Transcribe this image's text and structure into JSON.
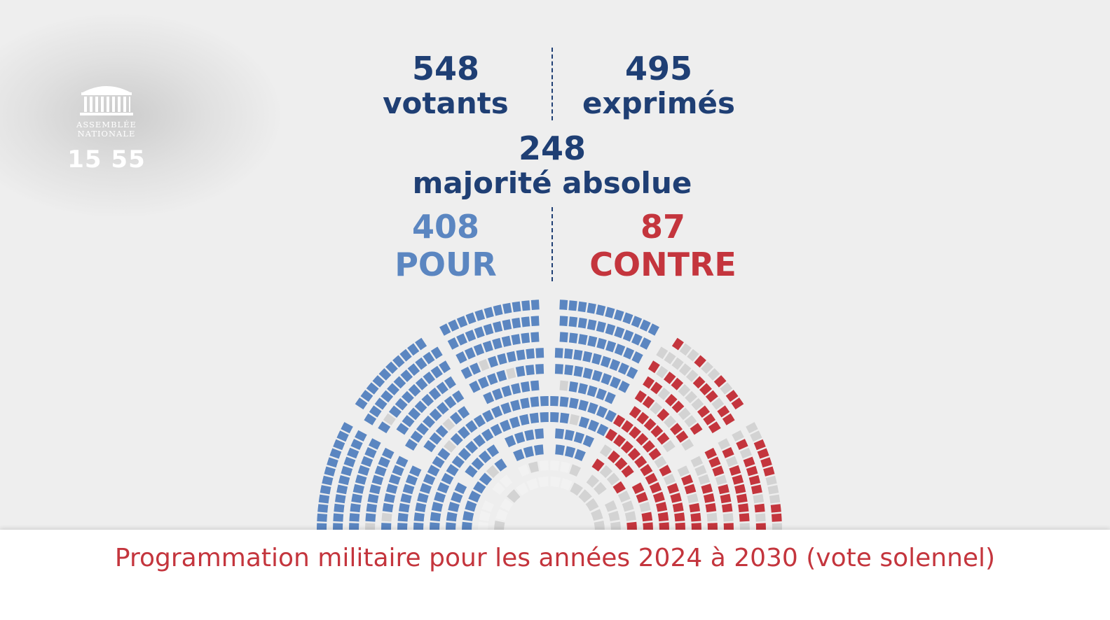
{
  "logo": {
    "line1": "ASSEMBLÉE",
    "line2": "NATIONALE"
  },
  "clock": "15 55",
  "stats": {
    "votants": {
      "value": "548",
      "label": "votants"
    },
    "exprimes": {
      "value": "495",
      "label": "exprimés"
    },
    "majorite": {
      "value": "248",
      "label": "majorité absolue"
    },
    "pour": {
      "value": "408",
      "label": "POUR"
    },
    "contre": {
      "value": "87",
      "label": "CONTRE"
    }
  },
  "caption": "Programmation militaire pour les années 2024 à 2030 (vote solennel)",
  "colors": {
    "navy": "#1f3f74",
    "pour": "#5b86c1",
    "contre": "#c4353d",
    "absent": "#d3d3d3",
    "background": "#eeeeee"
  },
  "chart_data": {
    "type": "hemicycle",
    "title": "",
    "series": [
      {
        "name": "POUR",
        "value": 408,
        "color": "#5b86c1"
      },
      {
        "name": "CONTRE",
        "value": 87,
        "color": "#c4353d"
      }
    ],
    "votants": 548,
    "exprimes": 495,
    "majorite_absolue": 248
  }
}
